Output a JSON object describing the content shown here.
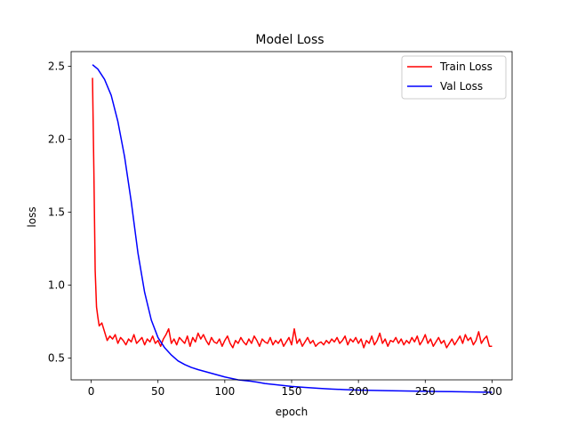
{
  "chart_data": {
    "type": "line",
    "title": "Model Loss",
    "xlabel": "epoch",
    "ylabel": "loss",
    "xlim": [
      -15,
      315
    ],
    "ylim": [
      0.35,
      2.6
    ],
    "xticks": [
      0,
      50,
      100,
      150,
      200,
      250,
      300
    ],
    "yticks": [
      0.5,
      1.0,
      1.5,
      2.0,
      2.5
    ],
    "xtick_labels": [
      "0",
      "50",
      "100",
      "150",
      "200",
      "250",
      "300"
    ],
    "ytick_labels": [
      "0.5",
      "1.0",
      "1.5",
      "2.0",
      "2.5"
    ],
    "grid": false,
    "legend_position": "top-right",
    "series": [
      {
        "name": "Train Loss",
        "color": "#ff0000",
        "x": [
          1,
          2,
          3,
          4,
          5,
          6,
          8,
          10,
          12,
          14,
          16,
          18,
          20,
          22,
          24,
          26,
          28,
          30,
          32,
          34,
          36,
          38,
          40,
          42,
          44,
          46,
          48,
          50,
          52,
          54,
          56,
          58,
          60,
          62,
          64,
          66,
          68,
          70,
          72,
          74,
          76,
          78,
          80,
          82,
          84,
          86,
          88,
          90,
          92,
          94,
          96,
          98,
          100,
          102,
          104,
          106,
          108,
          110,
          112,
          114,
          116,
          118,
          120,
          122,
          124,
          126,
          128,
          130,
          132,
          134,
          136,
          138,
          140,
          142,
          144,
          146,
          148,
          150,
          152,
          154,
          156,
          158,
          160,
          162,
          164,
          166,
          168,
          170,
          172,
          174,
          176,
          178,
          180,
          182,
          184,
          186,
          188,
          190,
          192,
          194,
          196,
          198,
          200,
          202,
          204,
          206,
          208,
          210,
          212,
          214,
          216,
          218,
          220,
          222,
          224,
          226,
          228,
          230,
          232,
          234,
          236,
          238,
          240,
          242,
          244,
          246,
          248,
          250,
          252,
          254,
          256,
          258,
          260,
          262,
          264,
          266,
          268,
          270,
          272,
          274,
          276,
          278,
          280,
          282,
          284,
          286,
          288,
          290,
          292,
          294,
          296,
          298,
          300
        ],
        "values": [
          2.42,
          1.8,
          1.1,
          0.85,
          0.78,
          0.72,
          0.74,
          0.68,
          0.62,
          0.65,
          0.63,
          0.66,
          0.6,
          0.64,
          0.62,
          0.59,
          0.63,
          0.61,
          0.66,
          0.6,
          0.62,
          0.64,
          0.59,
          0.63,
          0.61,
          0.65,
          0.6,
          0.62,
          0.58,
          0.63,
          0.66,
          0.7,
          0.6,
          0.63,
          0.59,
          0.64,
          0.62,
          0.6,
          0.65,
          0.58,
          0.64,
          0.61,
          0.67,
          0.63,
          0.66,
          0.62,
          0.59,
          0.64,
          0.61,
          0.6,
          0.63,
          0.58,
          0.62,
          0.65,
          0.6,
          0.57,
          0.62,
          0.6,
          0.64,
          0.61,
          0.59,
          0.63,
          0.6,
          0.65,
          0.62,
          0.58,
          0.63,
          0.61,
          0.6,
          0.64,
          0.59,
          0.62,
          0.6,
          0.63,
          0.58,
          0.61,
          0.64,
          0.59,
          0.7,
          0.6,
          0.63,
          0.58,
          0.61,
          0.64,
          0.6,
          0.62,
          0.58,
          0.6,
          0.61,
          0.59,
          0.62,
          0.6,
          0.63,
          0.61,
          0.64,
          0.6,
          0.62,
          0.65,
          0.59,
          0.63,
          0.61,
          0.64,
          0.6,
          0.63,
          0.57,
          0.62,
          0.6,
          0.65,
          0.59,
          0.62,
          0.67,
          0.6,
          0.63,
          0.58,
          0.62,
          0.61,
          0.64,
          0.6,
          0.63,
          0.59,
          0.62,
          0.6,
          0.64,
          0.61,
          0.65,
          0.59,
          0.62,
          0.66,
          0.6,
          0.63,
          0.58,
          0.61,
          0.64,
          0.6,
          0.62,
          0.57,
          0.6,
          0.63,
          0.59,
          0.62,
          0.65,
          0.6,
          0.66,
          0.62,
          0.64,
          0.59,
          0.62,
          0.68,
          0.6,
          0.63,
          0.65,
          0.58,
          0.58
        ]
      },
      {
        "name": "Val Loss",
        "color": "#0000ff",
        "x": [
          1,
          5,
          10,
          15,
          20,
          25,
          30,
          35,
          40,
          45,
          50,
          55,
          60,
          65,
          70,
          75,
          80,
          90,
          100,
          110,
          120,
          125,
          130,
          140,
          150,
          160,
          170,
          180,
          190,
          200,
          220,
          240,
          260,
          280,
          300
        ],
        "values": [
          2.51,
          2.48,
          2.41,
          2.3,
          2.12,
          1.88,
          1.57,
          1.22,
          0.95,
          0.76,
          0.64,
          0.57,
          0.52,
          0.48,
          0.455,
          0.435,
          0.42,
          0.395,
          0.37,
          0.35,
          0.34,
          0.333,
          0.325,
          0.315,
          0.305,
          0.298,
          0.292,
          0.287,
          0.283,
          0.28,
          0.276,
          0.273,
          0.27,
          0.268,
          0.265
        ]
      }
    ]
  }
}
